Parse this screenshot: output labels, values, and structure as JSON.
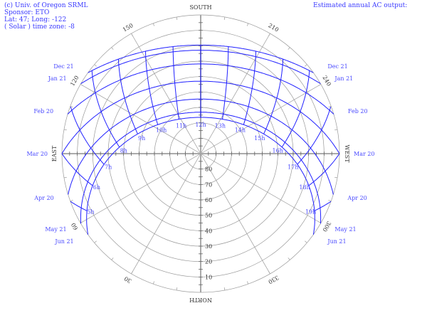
{
  "header": {
    "credit": "(c) Univ. of Oregon SRML",
    "sponsor": "Sponsor: ETO",
    "location": "Lat: 47; Long: -122",
    "timezone": "( Solar ) time zone: -8",
    "output": "Estimated annual AC output:"
  },
  "colors": {
    "grid": "#999999",
    "path": "#2020ff",
    "label": "#4a4aff",
    "text": "#333333"
  },
  "chart_data": {
    "type": "polar sun path",
    "latitude": 47,
    "longitude": -122,
    "time_zone": -8,
    "time_basis": "Solar",
    "directions": {
      "south": "SOUTH",
      "north": "NORTH",
      "east": "EAST",
      "west": "WEST"
    },
    "azimuth_labels": [
      "30",
      "60",
      "120",
      "150",
      "210",
      "240",
      "300",
      "330"
    ],
    "altitude_labels": [
      "10",
      "20",
      "30",
      "40",
      "50",
      "60",
      "70",
      "80"
    ],
    "altitude_range": [
      0,
      90
    ],
    "dates": [
      {
        "label": "Dec 21",
        "declination": -23.45
      },
      {
        "label": "Jan 21",
        "declination": -20.1
      },
      {
        "label": "Feb 20",
        "declination": -11.2
      },
      {
        "label": "Mar 20",
        "declination": 0
      },
      {
        "label": "Apr 20",
        "declination": 11.6
      },
      {
        "label": "May 21",
        "declination": 20.1
      },
      {
        "label": "Jun 21",
        "declination": 23.45
      }
    ],
    "hours": [
      "5h",
      "6h",
      "7h",
      "8h",
      "9h",
      "10h",
      "11h",
      "12h",
      "13h",
      "14h",
      "15h",
      "16h",
      "17h",
      "18h",
      "19h"
    ]
  }
}
